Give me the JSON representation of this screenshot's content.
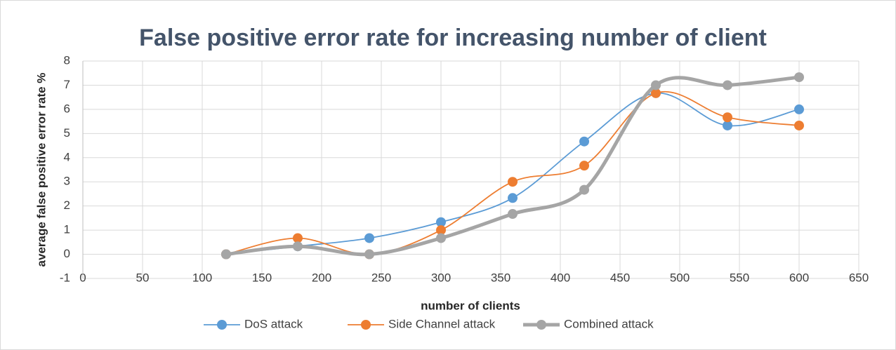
{
  "chart_data": {
    "type": "line",
    "title": "False positive error rate for increasing number of client",
    "x_label": "number of clients",
    "y_label": "average false positive error rate  %",
    "x": [
      120,
      180,
      240,
      300,
      360,
      420,
      480,
      540,
      600
    ],
    "series": [
      {
        "name": "DoS attack",
        "color": "#5b9bd5",
        "values": [
          0,
          0.33,
          0.67,
          1.33,
          2.33,
          4.67,
          6.67,
          5.33,
          6
        ]
      },
      {
        "name": "Side Channel attack",
        "color": "#ed7d31",
        "values": [
          0,
          0.67,
          0,
          1,
          3,
          3.67,
          6.67,
          5.67,
          5.33
        ]
      },
      {
        "name": "Combined attack",
        "color": "#a5a5a5",
        "values": [
          0,
          0.33,
          0,
          0.67,
          1.67,
          2.67,
          7,
          7,
          7.33
        ]
      }
    ],
    "xlim": [
      0,
      650
    ],
    "xticks": [
      0,
      50,
      100,
      150,
      200,
      250,
      300,
      350,
      400,
      450,
      500,
      550,
      600,
      650
    ],
    "ylim": [
      -1,
      8
    ],
    "yticks": [
      -1,
      0,
      1,
      2,
      3,
      4,
      5,
      6,
      7,
      8
    ],
    "grid": true,
    "smooth": true,
    "legend": "bottom"
  }
}
